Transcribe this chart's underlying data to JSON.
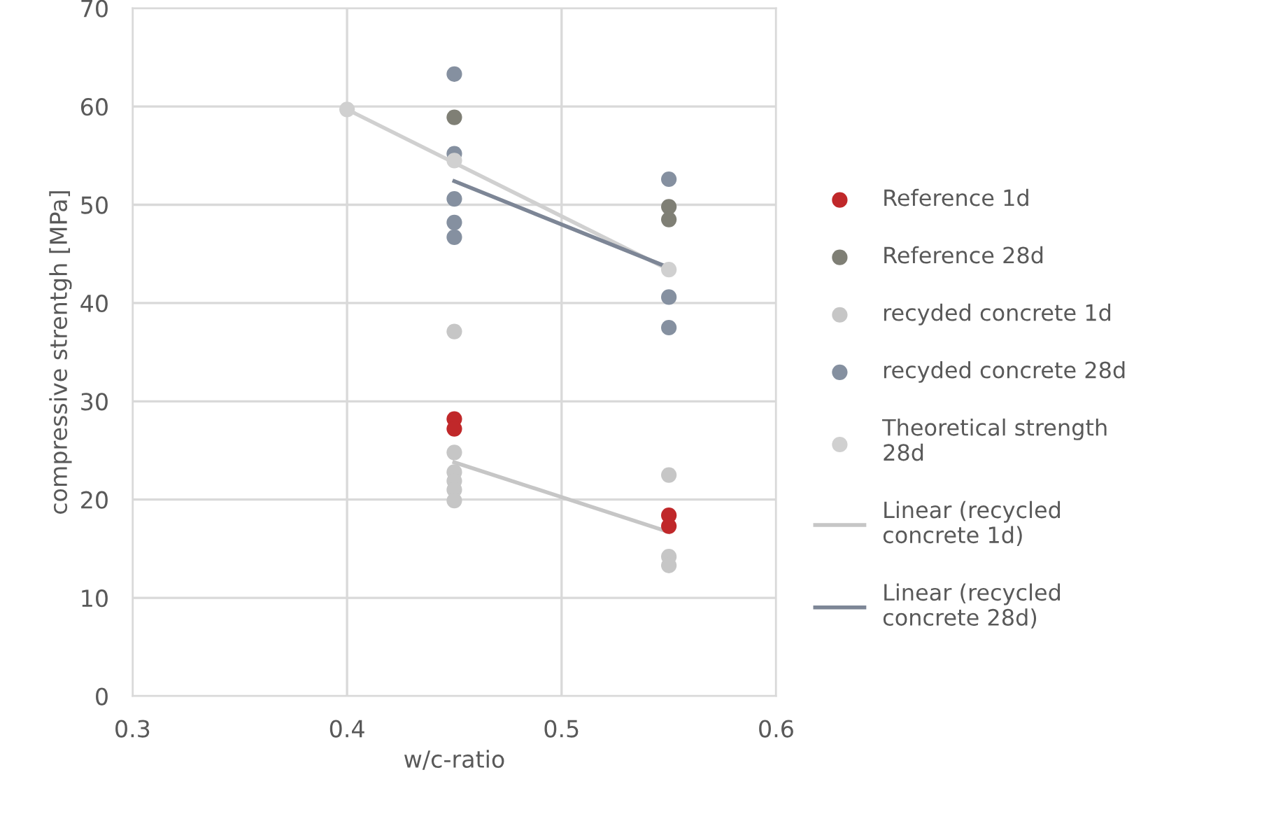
{
  "chart_data": {
    "type": "scatter",
    "xlabel": "w/c-ratio",
    "ylabel": "compressive strentgh [MPa]",
    "xlim": [
      0.3,
      0.6
    ],
    "xticks": [
      {
        "value": 0.3,
        "label": "0.3"
      },
      {
        "value": 0.4,
        "label": "0.4"
      },
      {
        "value": 0.5,
        "label": "0.5"
      },
      {
        "value": 0.6,
        "label": "0.6"
      }
    ],
    "ylim": [
      0,
      70
    ],
    "yticks": [
      0,
      10,
      20,
      30,
      40,
      50,
      60,
      70
    ],
    "grid": true,
    "legend": "right",
    "marker": "circle",
    "series": [
      {
        "name": "Reference 1d",
        "color": "#c0282a",
        "x": [
          0.45,
          0.45,
          0.55,
          0.55
        ],
        "values": [
          28.2,
          27.2,
          18.4,
          17.3
        ]
      },
      {
        "name": "Reference 28d",
        "color": "#7f7f75",
        "x": [
          0.45,
          0.55,
          0.55
        ],
        "values": [
          58.9,
          49.8,
          48.5
        ]
      },
      {
        "name": "recyded concrete 1d",
        "color": "#c6c6c6",
        "x": [
          0.45,
          0.45,
          0.45,
          0.45,
          0.45,
          0.45,
          0.55,
          0.55,
          0.55
        ],
        "values": [
          37.1,
          24.8,
          22.8,
          21.9,
          21.0,
          19.9,
          22.5,
          14.2,
          13.3
        ]
      },
      {
        "name": "recyded concrete 28d",
        "color": "#8590a0",
        "x": [
          0.45,
          0.45,
          0.45,
          0.45,
          0.45,
          0.55,
          0.55,
          0.55
        ],
        "values": [
          63.3,
          55.2,
          50.6,
          48.2,
          46.7,
          52.6,
          40.6,
          37.5
        ]
      },
      {
        "name": "Theoretical strength 28d",
        "color": "#d0d0d0",
        "x": [
          0.4,
          0.45,
          0.55
        ],
        "values": [
          59.7,
          54.5,
          43.4
        ]
      },
      {
        "type": "line",
        "marker": "none",
        "color": "#d0d0d0",
        "x": [
          0.4,
          0.55
        ],
        "values": [
          59.7,
          43.4
        ]
      },
      {
        "type": "line",
        "marker": "none",
        "name": "Linear (recycled concrete 1d)",
        "color": "#c6c6c6",
        "x": [
          0.45,
          0.55
        ],
        "values": [
          23.8,
          16.7
        ]
      },
      {
        "type": "line",
        "marker": "none",
        "name": "Linear (recycled concrete 28d)",
        "color": "#7d8696",
        "x": [
          0.45,
          0.55
        ],
        "values": [
          52.4,
          43.6
        ]
      }
    ]
  }
}
